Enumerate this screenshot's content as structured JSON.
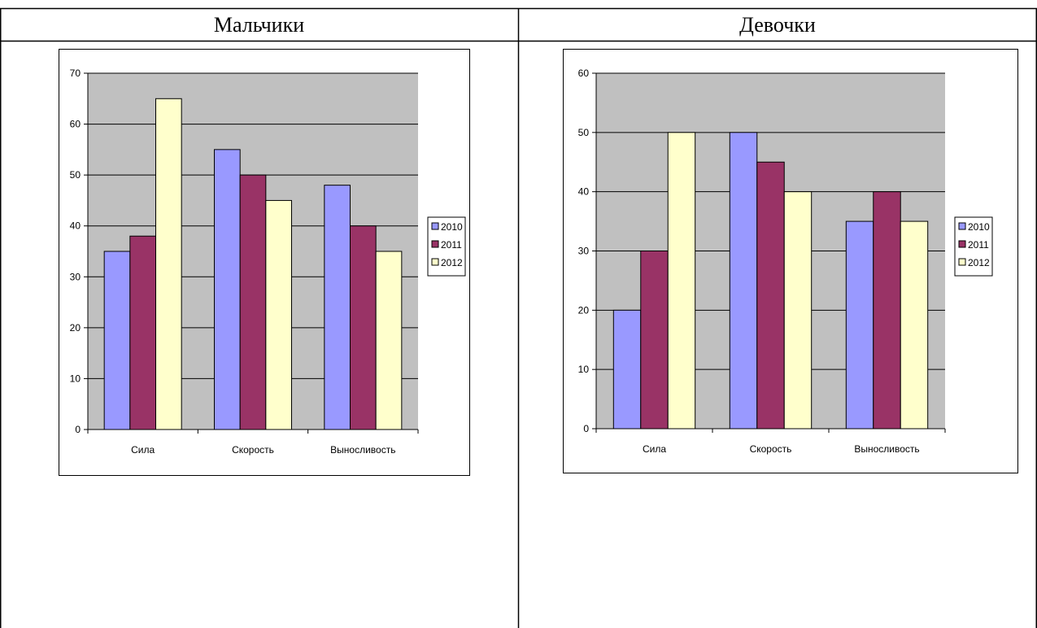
{
  "table": {
    "col_boys": "Мальчики",
    "col_girls": "Девочки"
  },
  "colors": {
    "2010": "#9999ff",
    "2011": "#993366",
    "2012": "#ffffcc",
    "plot_bg": "#c0c0c0"
  },
  "chart_data": [
    {
      "type": "bar",
      "categories": [
        "Сила",
        "Скорость",
        "Выносливость"
      ],
      "series": [
        {
          "name": "2010",
          "values": [
            35,
            55,
            48
          ]
        },
        {
          "name": "2011",
          "values": [
            38,
            50,
            40
          ]
        },
        {
          "name": "2012",
          "values": [
            65,
            45,
            35
          ]
        }
      ],
      "yticks": [
        "0",
        "10",
        "20",
        "30",
        "40",
        "50",
        "60",
        "70"
      ],
      "ylim": [
        0,
        70
      ],
      "grid": true,
      "legend": "right"
    },
    {
      "type": "bar",
      "categories": [
        "Сила",
        "Скорость",
        "Выносливость"
      ],
      "series": [
        {
          "name": "2010",
          "values": [
            20,
            50,
            35
          ]
        },
        {
          "name": "2011",
          "values": [
            30,
            45,
            40
          ]
        },
        {
          "name": "2012",
          "values": [
            50,
            40,
            35
          ]
        }
      ],
      "yticks": [
        "0",
        "10",
        "20",
        "30",
        "40",
        "50",
        "60"
      ],
      "ylim": [
        0,
        60
      ],
      "grid": true,
      "legend": "right"
    }
  ]
}
